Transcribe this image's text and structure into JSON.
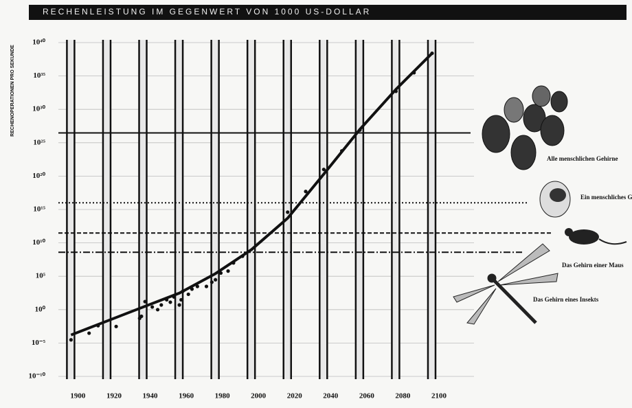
{
  "chart_data": {
    "type": "line",
    "title": "RECHENLEISTUNG IM GEGENWERT VON 1000 US-DOLLAR",
    "y_label": "RECHENOPERATIONEN PRO SEKUNDE",
    "log_scale_y": true,
    "grid": true,
    "color": "#111111",
    "x": [
      1900,
      1920,
      1940,
      1960,
      1980,
      2000,
      2020,
      2040,
      2060,
      2080,
      2100
    ],
    "values": [
      0.00016,
      0.02,
      2.5,
      300,
      250000,
      1000000000,
      50000000000000,
      2e+20,
      1e+27,
      1e+33,
      2.5e+38
    ],
    "points": {
      "x": [
        1900,
        1910,
        1915,
        1925,
        1938,
        1939,
        1941,
        1945,
        1948,
        1950,
        1953,
        1955,
        1957,
        1960,
        1961,
        1962,
        1965,
        1967,
        1970,
        1975,
        1978,
        1980,
        1983,
        1987,
        1990,
        1995,
        2020,
        2030,
        2040,
        2050,
        2060,
        2080,
        2090,
        2100
      ],
      "values": [
        3e-05,
        0.0003,
        0.004,
        0.003,
        0.05,
        0.1,
        16,
        2.5,
        1,
        5,
        30,
        13,
        80,
        5,
        30,
        600,
        200,
        1200,
        3000,
        3000,
        13000,
        30000,
        300000,
        600000,
        10000000,
        100000000,
        400000000000000,
        5e+17,
        1e+21,
        6e+23,
        8e+26,
        5e+32,
        3e+35,
        2.5e+38
      ]
    },
    "xlim": [
      1893,
      2108
    ],
    "xticks": [
      1900,
      1920,
      1940,
      1960,
      1980,
      2000,
      2020,
      2040,
      2060,
      2080,
      2100
    ],
    "ylim": [
      1e-10,
      1e+40
    ],
    "yticks": [
      {
        "value": 1e-10,
        "label": "10⁻¹⁰"
      },
      {
        "value": 1e-05,
        "label": "10⁻⁵"
      },
      {
        "value": 1,
        "label": "10⁰"
      },
      {
        "value": 100000,
        "label": "10⁵"
      },
      {
        "value": 10000000000,
        "label": "10¹⁰"
      },
      {
        "value": 1000000000000000,
        "label": "10¹⁵"
      },
      {
        "value": 1e+20,
        "label": "10²⁰"
      },
      {
        "value": 1e+25,
        "label": "10²⁵"
      },
      {
        "value": 1e+30,
        "label": "10³⁰"
      },
      {
        "value": 1e+35,
        "label": "10³⁵"
      },
      {
        "value": 1e+40,
        "label": "10⁴⁰"
      }
    ],
    "reference_lines": [
      {
        "label": "Alle menschlichen Gehirne",
        "value": 3e+26,
        "style": "solid"
      },
      {
        "label": "Ein menschliches Gehirn",
        "value": 1e+16,
        "style": "dotted"
      },
      {
        "label": "Das Gehirn einer Maus",
        "value": 300000000000,
        "style": "dashed"
      },
      {
        "label": "Das Gehirn eines Insekts",
        "value": 400000000,
        "style": "dashdot"
      }
    ]
  }
}
